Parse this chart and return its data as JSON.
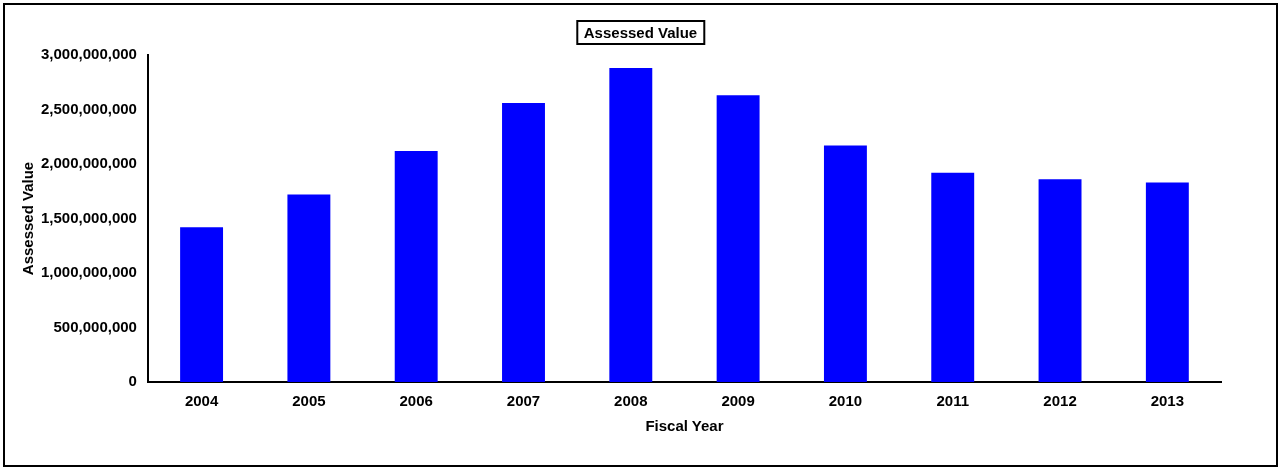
{
  "chart_data": {
    "type": "bar",
    "title": "Assessed Value",
    "xlabel": "Fiscal Year",
    "ylabel": "Assessed Value",
    "categories": [
      "2004",
      "2005",
      "2006",
      "2007",
      "2008",
      "2009",
      "2010",
      "2011",
      "2012",
      "2013"
    ],
    "values": [
      1420000000,
      1720000000,
      2120000000,
      2560000000,
      2880000000,
      2630000000,
      2170000000,
      1920000000,
      1860000000,
      1830000000
    ],
    "color": "#0000ff",
    "ylim": [
      0,
      3000000000
    ],
    "yticks": [
      {
        "value": 0,
        "label": "0"
      },
      {
        "value": 500000000,
        "label": "500,000,000"
      },
      {
        "value": 1000000000,
        "label": "1,000,000,000"
      },
      {
        "value": 1500000000,
        "label": "1,500,000,000"
      },
      {
        "value": 2000000000,
        "label": "2,000,000,000"
      },
      {
        "value": 2500000000,
        "label": "2,500,000,000"
      },
      {
        "value": 3000000000,
        "label": "3,000,000,000"
      }
    ],
    "grid": false,
    "legend": false
  }
}
